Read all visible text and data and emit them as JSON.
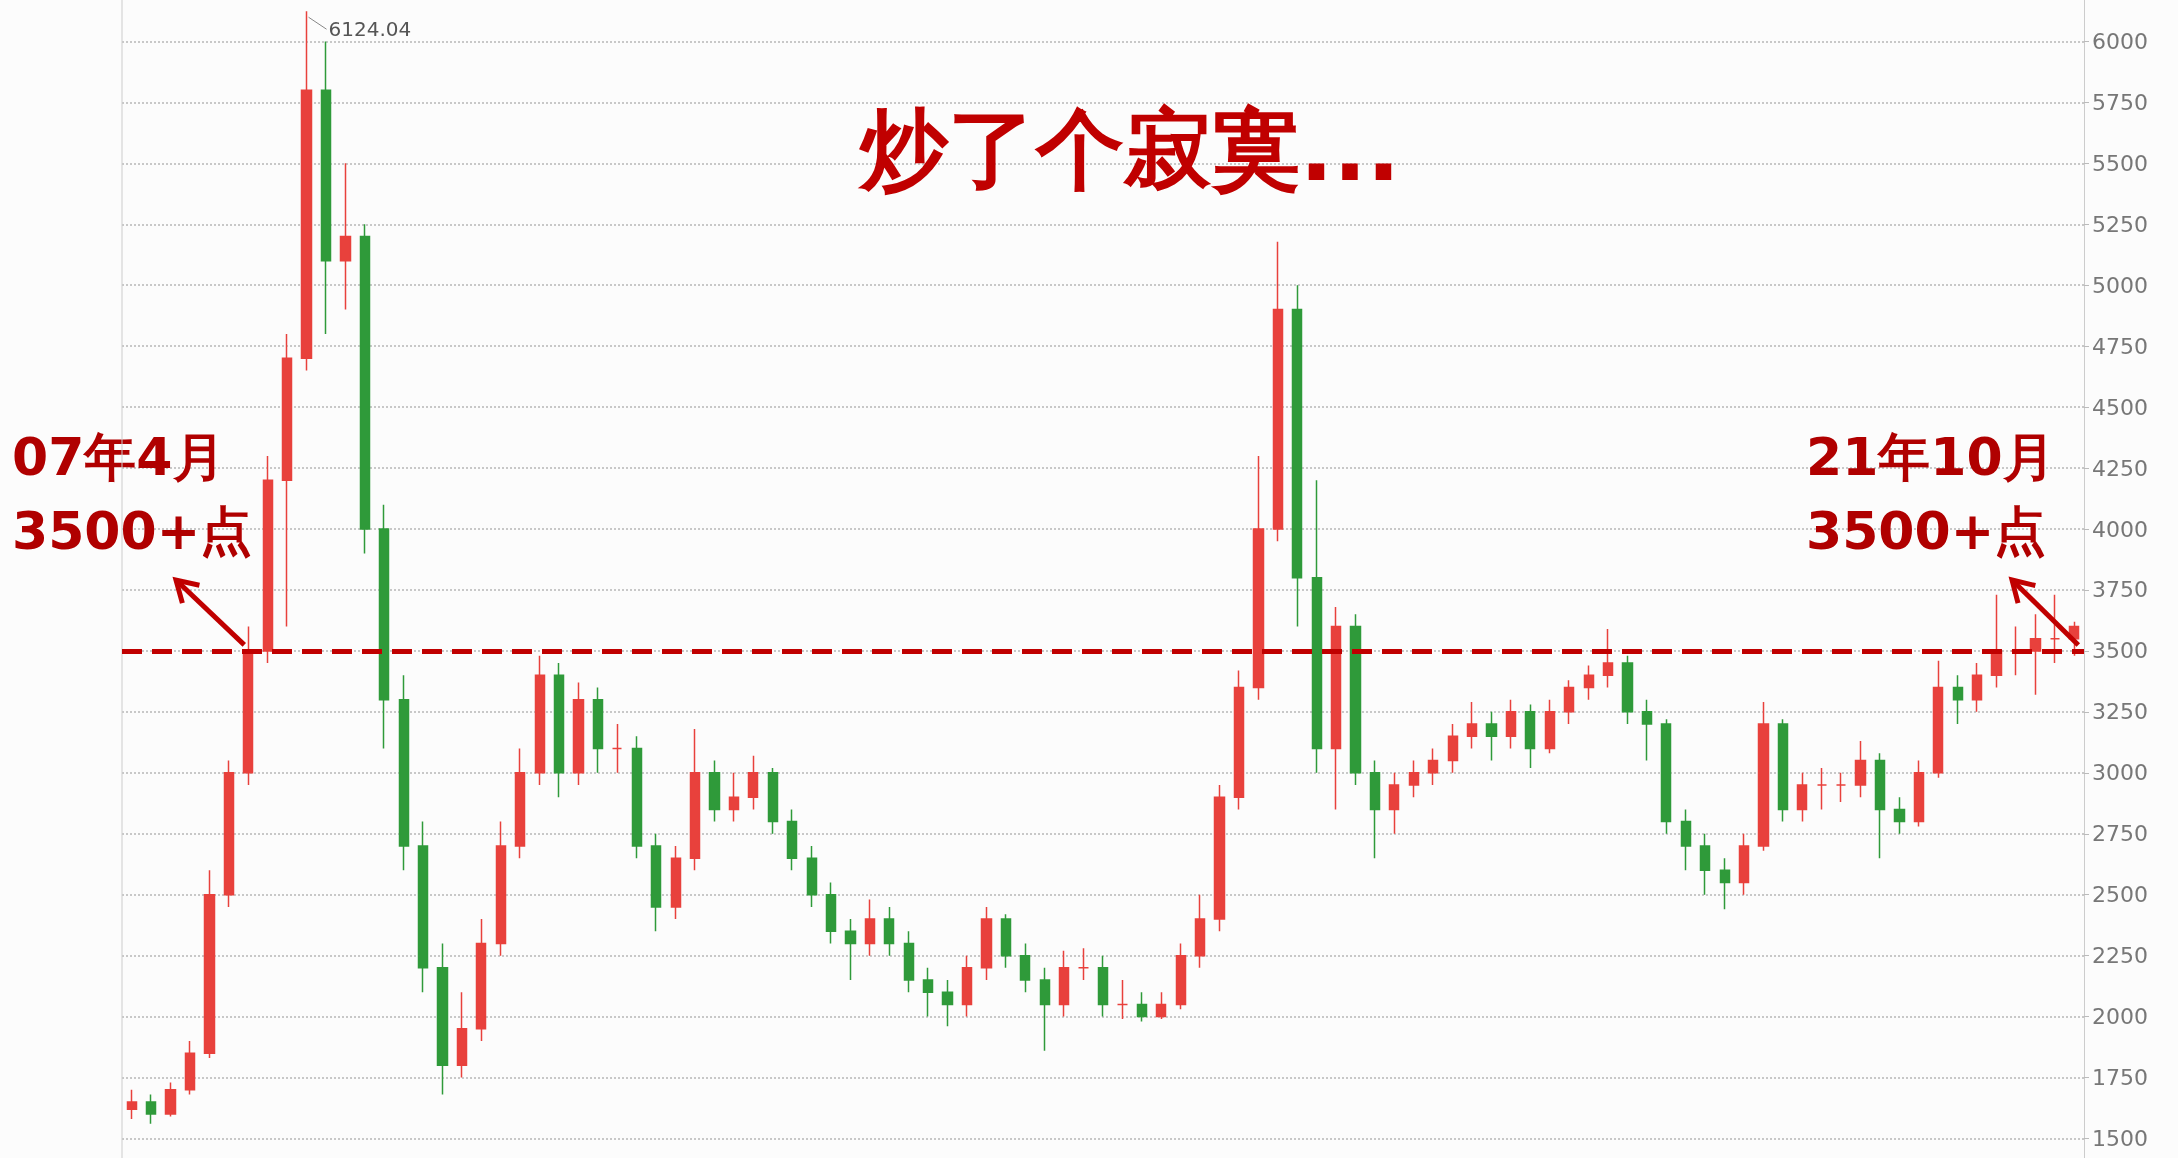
{
  "chart_data": {
    "type": "candlestick",
    "title": "炒了个寂寞...",
    "categories": [
      null,
      null,
      null,
      null,
      null,
      null,
      null,
      null,
      null,
      null,
      null,
      null,
      null,
      null,
      null,
      null,
      null,
      null,
      null,
      null,
      null,
      null,
      null,
      null,
      null,
      null,
      null,
      null,
      null,
      null,
      null,
      null,
      null,
      null,
      null,
      null,
      null,
      null,
      null,
      null,
      null,
      null,
      null,
      null,
      null,
      null,
      null,
      null,
      null,
      null,
      null,
      null,
      null,
      null,
      null,
      null,
      null,
      null,
      null,
      null,
      null,
      null,
      null,
      null,
      null,
      null,
      null,
      null,
      null,
      null,
      null,
      null,
      null,
      null,
      null,
      null,
      null,
      null,
      null,
      null,
      null,
      null,
      null,
      null,
      null,
      null,
      null,
      null,
      null,
      null,
      null,
      null,
      null,
      null,
      null,
      null,
      null,
      null,
      null,
      null,
      null
    ],
    "ohlc": [
      [
        1620,
        1700,
        1580,
        1650
      ],
      [
        1650,
        1680,
        1560,
        1600
      ],
      [
        1600,
        1730,
        1590,
        1700
      ],
      [
        1700,
        1900,
        1680,
        1850
      ],
      [
        1850,
        2600,
        1830,
        2500
      ],
      [
        2500,
        3050,
        2450,
        3000
      ],
      [
        3000,
        3600,
        2950,
        3500
      ],
      [
        3500,
        4300,
        3450,
        4200
      ],
      [
        4200,
        4800,
        3600,
        4700
      ],
      [
        4700,
        6124.04,
        4650,
        5800
      ],
      [
        5800,
        6000,
        4800,
        5100
      ],
      [
        5100,
        5500,
        4900,
        5200
      ],
      [
        5200,
        5250,
        3900,
        4000
      ],
      [
        4000,
        4100,
        3100,
        3300
      ],
      [
        3300,
        3400,
        2600,
        2700
      ],
      [
        2700,
        2800,
        2100,
        2200
      ],
      [
        2200,
        2300,
        1680,
        1800
      ],
      [
        1800,
        2100,
        1750,
        1950
      ],
      [
        1950,
        2400,
        1900,
        2300
      ],
      [
        2300,
        2800,
        2250,
        2700
      ],
      [
        2700,
        3100,
        2650,
        3000
      ],
      [
        3000,
        3480,
        2950,
        3400
      ],
      [
        3400,
        3450,
        2900,
        3000
      ],
      [
        3000,
        3370,
        2950,
        3300
      ],
      [
        3300,
        3350,
        3000,
        3100
      ],
      [
        3100,
        3200,
        3000,
        3100
      ],
      [
        3100,
        3150,
        2650,
        2700
      ],
      [
        2700,
        2750,
        2350,
        2450
      ],
      [
        2450,
        2700,
        2400,
        2650
      ],
      [
        2650,
        3180,
        2600,
        3000
      ],
      [
        3000,
        3050,
        2800,
        2850
      ],
      [
        2850,
        3000,
        2800,
        2900
      ],
      [
        2900,
        3070,
        2850,
        3000
      ],
      [
        3000,
        3020,
        2750,
        2800
      ],
      [
        2800,
        2850,
        2600,
        2650
      ],
      [
        2650,
        2700,
        2450,
        2500
      ],
      [
        2500,
        2550,
        2300,
        2350
      ],
      [
        2350,
        2400,
        2150,
        2300
      ],
      [
        2300,
        2480,
        2250,
        2400
      ],
      [
        2400,
        2450,
        2250,
        2300
      ],
      [
        2300,
        2350,
        2100,
        2150
      ],
      [
        2150,
        2200,
        2000,
        2100
      ],
      [
        2100,
        2150,
        1960,
        2050
      ],
      [
        2050,
        2250,
        2000,
        2200
      ],
      [
        2200,
        2450,
        2150,
        2400
      ],
      [
        2400,
        2420,
        2200,
        2250
      ],
      [
        2250,
        2300,
        2100,
        2150
      ],
      [
        2150,
        2200,
        1860,
        2050
      ],
      [
        2050,
        2270,
        2000,
        2200
      ],
      [
        2200,
        2280,
        2150,
        2200
      ],
      [
        2200,
        2250,
        2000,
        2050
      ],
      [
        2050,
        2150,
        1990,
        2050
      ],
      [
        2050,
        2100,
        1980,
        2000
      ],
      [
        2000,
        2100,
        1990,
        2050
      ],
      [
        2050,
        2300,
        2030,
        2250
      ],
      [
        2250,
        2500,
        2200,
        2400
      ],
      [
        2400,
        2950,
        2350,
        2900
      ],
      [
        2900,
        3420,
        2850,
        3350
      ],
      [
        3350,
        4300,
        3300,
        4000
      ],
      [
        4000,
        5178,
        3950,
        4900
      ],
      [
        4900,
        5000,
        3600,
        3800
      ],
      [
        3800,
        4200,
        3000,
        3100
      ],
      [
        3100,
        3680,
        2850,
        3600
      ],
      [
        3600,
        3650,
        2950,
        3000
      ],
      [
        3000,
        3050,
        2650,
        2850
      ],
      [
        2850,
        3000,
        2750,
        2950
      ],
      [
        2950,
        3050,
        2900,
        3000
      ],
      [
        3000,
        3100,
        2950,
        3050
      ],
      [
        3050,
        3200,
        3000,
        3150
      ],
      [
        3150,
        3290,
        3100,
        3200
      ],
      [
        3200,
        3250,
        3050,
        3150
      ],
      [
        3150,
        3300,
        3100,
        3250
      ],
      [
        3250,
        3280,
        3020,
        3100
      ],
      [
        3100,
        3300,
        3080,
        3250
      ],
      [
        3250,
        3380,
        3200,
        3350
      ],
      [
        3350,
        3440,
        3300,
        3400
      ],
      [
        3400,
        3590,
        3350,
        3450
      ],
      [
        3450,
        3480,
        3200,
        3250
      ],
      [
        3250,
        3300,
        3050,
        3200
      ],
      [
        3200,
        3220,
        2750,
        2800
      ],
      [
        2800,
        2850,
        2600,
        2700
      ],
      [
        2700,
        2750,
        2500,
        2600
      ],
      [
        2600,
        2650,
        2440,
        2550
      ],
      [
        2550,
        2750,
        2500,
        2700
      ],
      [
        2700,
        3290,
        2680,
        3200
      ],
      [
        3200,
        3220,
        2800,
        2850
      ],
      [
        2850,
        3000,
        2800,
        2950
      ],
      [
        2950,
        3020,
        2850,
        2950
      ],
      [
        2950,
        3000,
        2880,
        2950
      ],
      [
        2950,
        3130,
        2900,
        3050
      ],
      [
        3050,
        3080,
        2650,
        2850
      ],
      [
        2850,
        2900,
        2750,
        2800
      ],
      [
        2800,
        3050,
        2780,
        3000
      ],
      [
        3000,
        3460,
        2980,
        3350
      ],
      [
        3350,
        3400,
        3200,
        3300
      ],
      [
        3300,
        3450,
        3250,
        3400
      ],
      [
        3400,
        3730,
        3350,
        3500
      ],
      [
        3500,
        3600,
        3400,
        3500
      ],
      [
        3500,
        3650,
        3320,
        3550
      ],
      [
        3550,
        3730,
        3450,
        3550
      ],
      [
        3550,
        3620,
        3480,
        3600
      ]
    ],
    "ylim": [
      1420,
      6170
    ],
    "yticks": [
      1500,
      1750,
      2000,
      2250,
      2500,
      2750,
      3000,
      3250,
      3500,
      3750,
      4000,
      4250,
      4500,
      4750,
      5000,
      5250,
      5500,
      5750,
      6000
    ],
    "grid": "y",
    "tick_labels": "y",
    "ref_lines": [
      {
        "axis": "y",
        "value": 3500,
        "color": "#c00000",
        "line_style": "dashed"
      }
    ],
    "annotations": [
      "07年4月\n3500+点",
      "21年10月\n3500+点",
      "6124.04"
    ]
  }
}
